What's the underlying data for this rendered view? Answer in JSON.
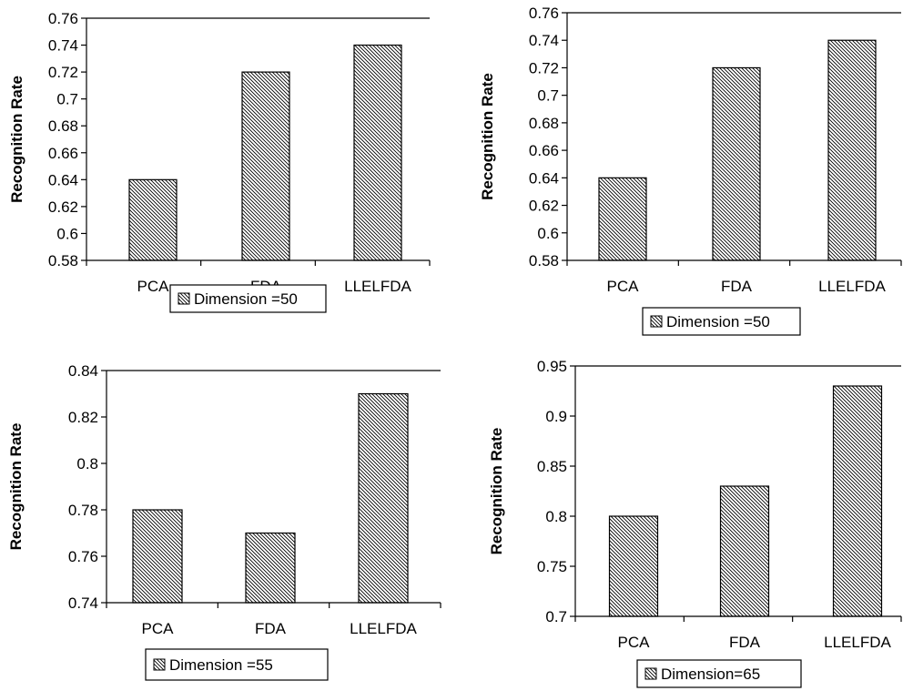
{
  "colors": {
    "bar_fill": "#ffffff",
    "bar_stroke": "#000000",
    "hatch": "#000000",
    "axis": "#000000"
  },
  "chart_data": [
    {
      "type": "bar",
      "categories": [
        "PCA",
        "FDA",
        "LLELFDA"
      ],
      "series": [
        {
          "name": "Dimension =50",
          "values": [
            0.64,
            0.72,
            0.74
          ]
        }
      ],
      "ylabel": "Recognition Rate",
      "ylim": [
        0.58,
        0.76
      ],
      "yticks": [
        "0.58",
        "0.6",
        "0.62",
        "0.64",
        "0.66",
        "0.68",
        "0.7",
        "0.72",
        "0.74",
        "0.76"
      ],
      "legend": "Dimension =50",
      "grid": false
    },
    {
      "type": "bar",
      "categories": [
        "PCA",
        "FDA",
        "LLELFDA"
      ],
      "series": [
        {
          "name": "Dimension =50",
          "values": [
            0.64,
            0.72,
            0.74
          ]
        }
      ],
      "ylabel": "Recognition Rate",
      "ylim": [
        0.58,
        0.76
      ],
      "yticks": [
        "0.58",
        "0.6",
        "0.62",
        "0.64",
        "0.66",
        "0.68",
        "0.7",
        "0.72",
        "0.74",
        "0.76"
      ],
      "legend": "Dimension =50",
      "grid": false
    },
    {
      "type": "bar",
      "categories": [
        "PCA",
        "FDA",
        "LLELFDA"
      ],
      "series": [
        {
          "name": "Dimension =55",
          "values": [
            0.78,
            0.77,
            0.83
          ]
        }
      ],
      "ylabel": "Recognition Rate",
      "ylim": [
        0.74,
        0.84
      ],
      "yticks": [
        "0.74",
        "0.76",
        "0.78",
        "0.8",
        "0.82",
        "0.84"
      ],
      "legend": "Dimension =55",
      "grid": false
    },
    {
      "type": "bar",
      "categories": [
        "PCA",
        "FDA",
        "LLELFDA"
      ],
      "series": [
        {
          "name": "Dimension=65",
          "values": [
            0.8,
            0.83,
            0.93
          ]
        }
      ],
      "ylabel": "Recognition Rate",
      "ylim": [
        0.7,
        0.95
      ],
      "yticks": [
        "0.7",
        "0.75",
        "0.8",
        "0.85",
        "0.9",
        "0.95"
      ],
      "legend": "Dimension=65",
      "grid": false
    }
  ]
}
